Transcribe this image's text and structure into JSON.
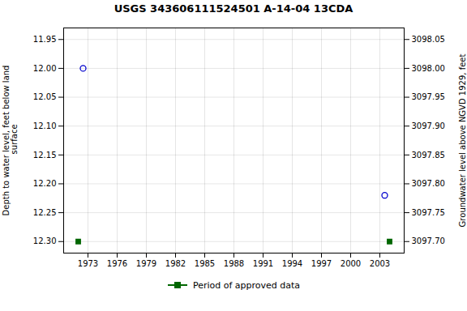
{
  "chart_data": {
    "type": "scatter",
    "title": "USGS 343606111524501 A-14-04 13CDA",
    "ylabel": "Depth to water level, feet below land\n surface",
    "y2label": "Groundwater level above NGVD 1929, feet",
    "xlim": [
      1970.5,
      2005.5
    ],
    "xticks": [
      1973,
      1976,
      1979,
      1982,
      1985,
      1988,
      1991,
      1994,
      1997,
      2000,
      2003
    ],
    "ylim": [
      12.32,
      11.93
    ],
    "yticks": [
      11.95,
      {
        "value": 12.0,
        "label": "12.00"
      },
      12.05,
      {
        "value": 12.1,
        "label": "12.10"
      },
      12.15,
      {
        "value": 12.2,
        "label": "12.20"
      },
      12.25,
      {
        "value": 12.3,
        "label": "12.30"
      }
    ],
    "y2lim": [
      3097.68,
      3098.07
    ],
    "y2ticks": [
      {
        "value": 3097.7,
        "label": "3097.70"
      },
      3097.75,
      {
        "value": 3097.8,
        "label": "3097.80"
      },
      3097.85,
      {
        "value": 3097.9,
        "label": "3097.90"
      },
      3097.95,
      {
        "value": 3098.0,
        "label": "3098.00"
      },
      3098.05
    ],
    "grid": true,
    "legend": "bottom",
    "series": [
      {
        "color": "#0000cc",
        "marker": "circle",
        "x": [
          1972.5,
          2003.5
        ],
        "values": [
          12.0,
          12.22
        ]
      },
      {
        "name": "Period of approved data",
        "color": "#006600",
        "marker": "square",
        "x": [
          1972.0,
          2004.0
        ],
        "values": [
          12.3,
          12.3
        ]
      }
    ]
  }
}
